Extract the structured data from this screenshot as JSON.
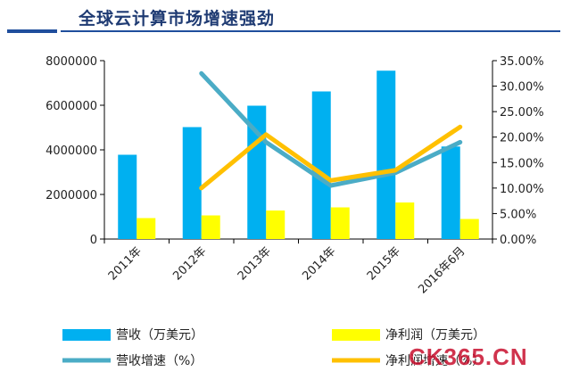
{
  "title": "全球云计算市场增速强劲",
  "watermark": "CK365.CN",
  "chart_data": {
    "type": "bar",
    "categories": [
      "2011年",
      "2012年",
      "2013年",
      "2014年",
      "2015年",
      "2016年6月"
    ],
    "left_axis": {
      "min": 0,
      "max": 8000000,
      "ticks": [
        "0",
        "2000000",
        "4000000",
        "6000000",
        "8000000"
      ]
    },
    "right_axis": {
      "min": 0,
      "max": 0.35,
      "ticks": [
        "0.00%",
        "5.00%",
        "10.00%",
        "15.00%",
        "20.00%",
        "25.00%",
        "30.00%",
        "35.00%"
      ]
    },
    "series": [
      {
        "name": "营收（万美元）",
        "kind": "bar",
        "axis": "left",
        "color": "#00b0f0",
        "values": [
          3780000,
          5020000,
          5980000,
          6620000,
          7550000,
          4150000
        ]
      },
      {
        "name": "净利润（万美元）",
        "kind": "bar",
        "axis": "left",
        "color": "#ffff00",
        "values": [
          940000,
          1060000,
          1280000,
          1420000,
          1640000,
          900000
        ]
      },
      {
        "name": "营收增速（%）",
        "kind": "line",
        "axis": "right",
        "color": "#4bacc6",
        "values": [
          null,
          0.325,
          0.19,
          0.105,
          0.13,
          0.19
        ]
      },
      {
        "name": "净利润增速（%）",
        "kind": "line",
        "axis": "right",
        "color": "#ffc000",
        "values": [
          null,
          0.1,
          0.205,
          0.115,
          0.135,
          0.22
        ]
      }
    ],
    "legend_position": "bottom"
  }
}
